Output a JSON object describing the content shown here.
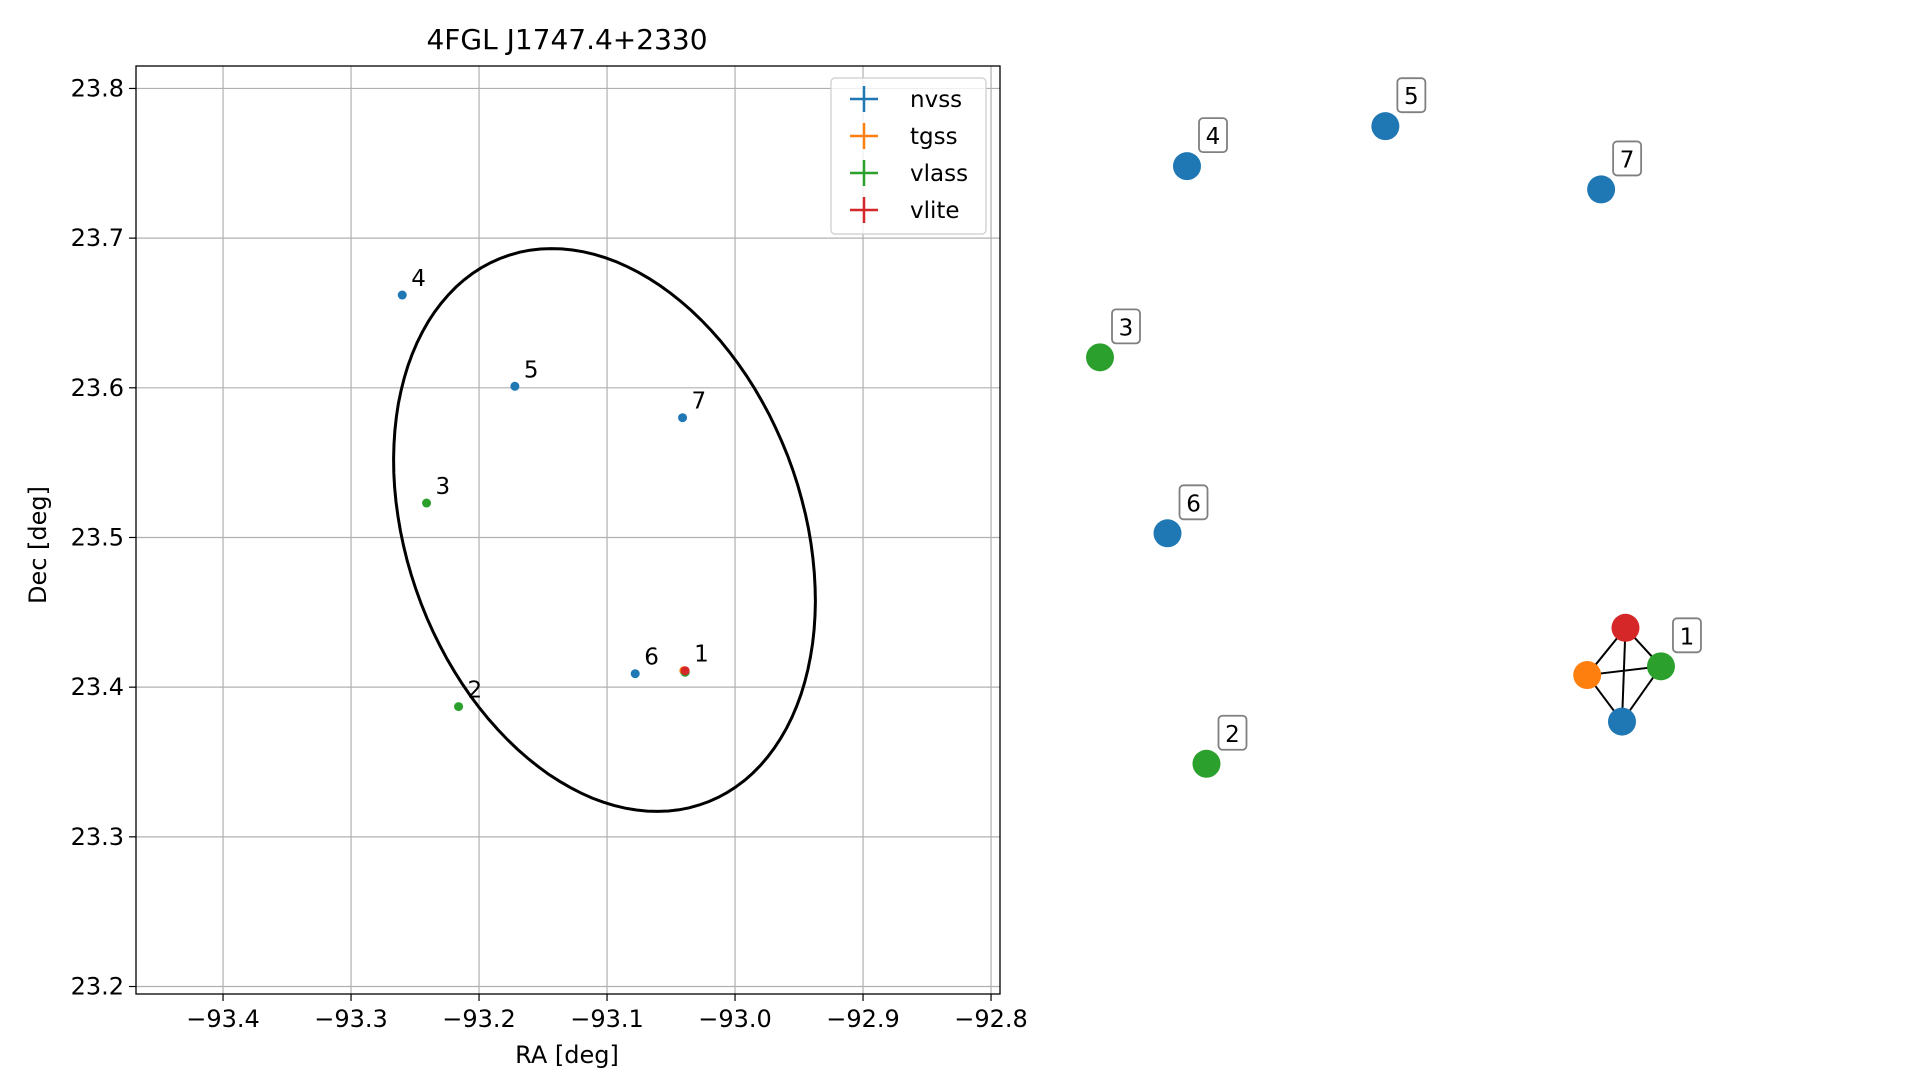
{
  "chart_data": [
    {
      "type": "scatter",
      "title": "4FGL J1747.4+2330",
      "xlabel": "RA [deg]",
      "ylabel": "Dec [deg]",
      "xlim": [
        -93.468,
        -92.793
      ],
      "ylim": [
        23.195,
        23.815
      ],
      "xticks": [
        -93.4,
        -93.3,
        -93.2,
        -93.1,
        -93.0,
        -92.9,
        -92.8
      ],
      "xtick_labels": [
        "−93.4",
        "−93.3",
        "−93.2",
        "−93.1",
        "−93.0",
        "−92.9",
        "−92.8"
      ],
      "yticks": [
        23.2,
        23.3,
        23.4,
        23.5,
        23.6,
        23.7,
        23.8
      ],
      "ytick_labels": [
        "23.2",
        "23.3",
        "23.4",
        "23.5",
        "23.6",
        "23.7",
        "23.8"
      ],
      "grid": true,
      "legend_position": "top-right",
      "series": [
        {
          "name": "nvss",
          "color": "#1f77b4",
          "points": [
            {
              "x": -93.26,
              "y": 23.662,
              "label": "4"
            },
            {
              "x": -93.172,
              "y": 23.601,
              "label": "5"
            },
            {
              "x": -93.041,
              "y": 23.58,
              "label": "7"
            },
            {
              "x": -93.078,
              "y": 23.409,
              "label": "6"
            },
            {
              "x": -93.039,
              "y": 23.41,
              "label": ""
            }
          ]
        },
        {
          "name": "tgss",
          "color": "#ff7f0e",
          "points": [
            {
              "x": -93.04,
              "y": 23.411,
              "label": ""
            }
          ]
        },
        {
          "name": "vlass",
          "color": "#2ca02c",
          "points": [
            {
              "x": -93.241,
              "y": 23.523,
              "label": "3"
            },
            {
              "x": -93.216,
              "y": 23.387,
              "label": "2"
            },
            {
              "x": -93.039,
              "y": 23.41,
              "label": ""
            }
          ]
        },
        {
          "name": "vlite",
          "color": "#d62728",
          "points": [
            {
              "x": -93.039,
              "y": 23.411,
              "label": "1"
            }
          ]
        }
      ],
      "ellipse": {
        "center_x": -93.102,
        "center_y": 23.505,
        "semi_major": 0.2,
        "semi_minor": 0.15,
        "angle_deg": -59,
        "color": "#000000"
      }
    },
    {
      "type": "network",
      "nodes": [
        {
          "id": "5",
          "x": 0.41,
          "y": 0.975,
          "color": "#1f77b4",
          "label": "5"
        },
        {
          "id": "4",
          "x": 0.125,
          "y": 0.92,
          "color": "#1f77b4",
          "label": "4"
        },
        {
          "id": "7",
          "x": 0.72,
          "y": 0.888,
          "color": "#1f77b4",
          "label": "7"
        },
        {
          "id": "3",
          "x": 0.0,
          "y": 0.657,
          "color": "#2ca02c",
          "label": "3"
        },
        {
          "id": "6",
          "x": 0.097,
          "y": 0.415,
          "color": "#1f77b4",
          "label": "6"
        },
        {
          "id": "1r",
          "x": 0.755,
          "y": 0.285,
          "color": "#d62728",
          "label": ""
        },
        {
          "id": "1g",
          "x": 0.806,
          "y": 0.232,
          "color": "#2ca02c",
          "label": "1"
        },
        {
          "id": "1o",
          "x": 0.7,
          "y": 0.22,
          "color": "#ff7f0e",
          "label": ""
        },
        {
          "id": "1b",
          "x": 0.75,
          "y": 0.156,
          "color": "#1f77b4",
          "label": ""
        },
        {
          "id": "2",
          "x": 0.153,
          "y": 0.098,
          "color": "#2ca02c",
          "label": "2"
        }
      ],
      "edges": [
        [
          "1r",
          "1g"
        ],
        [
          "1r",
          "1o"
        ],
        [
          "1r",
          "1b"
        ],
        [
          "1o",
          "1g"
        ],
        [
          "1o",
          "1b"
        ],
        [
          "1g",
          "1b"
        ]
      ]
    }
  ]
}
